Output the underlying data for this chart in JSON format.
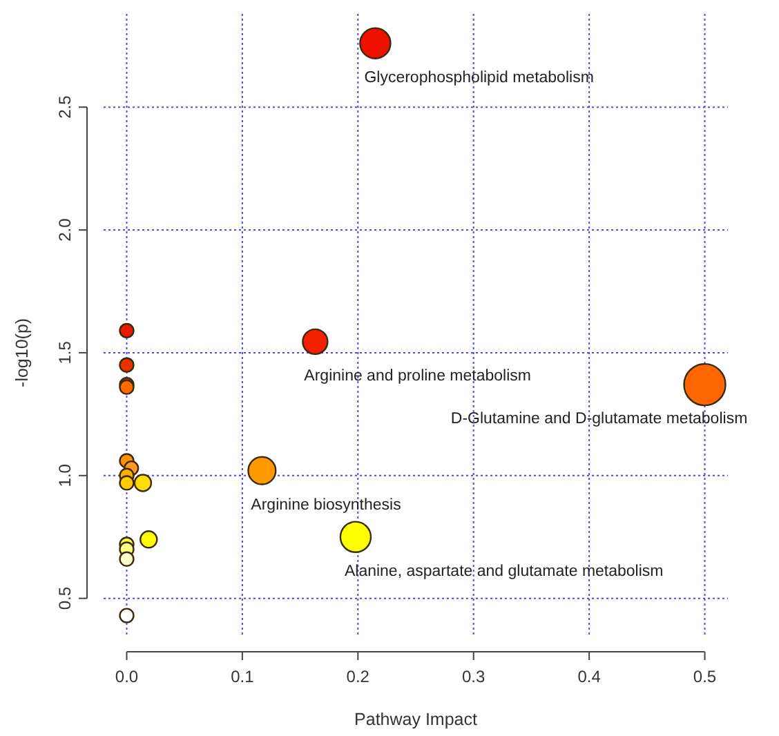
{
  "chart_data": {
    "type": "bubble",
    "xlabel": "Pathway Impact",
    "ylabel": "-log10(p)",
    "xlim": [
      -0.02,
      0.52
    ],
    "ylim": [
      0.35,
      2.88
    ],
    "xticks": [
      {
        "value": 0,
        "label": "0.0"
      },
      0.1,
      0.2,
      0.3,
      0.4,
      0.5
    ],
    "yticks": [
      0.5,
      {
        "value": 1,
        "label": "1.0"
      },
      1.5,
      {
        "value": 2,
        "label": "2.0"
      },
      2.5
    ],
    "grid": true,
    "marker": "circle",
    "series": [
      {
        "x": [
          0.215,
          0.163,
          0.5,
          0.117,
          0.198,
          0,
          0,
          0,
          0,
          0,
          0.004,
          0,
          0,
          0.014,
          0.019,
          0,
          0,
          0,
          0
        ],
        "values": [
          2.76,
          1.545,
          1.37,
          1.02,
          0.75,
          1.59,
          1.45,
          1.37,
          1.36,
          1.06,
          1.03,
          1.0,
          0.97,
          0.97,
          0.74,
          0.72,
          0.7,
          0.66,
          0.43
        ],
        "sizes": [
          0.54,
          0.36,
          1,
          0.44,
          0.54,
          0.11,
          0.11,
          0.11,
          0.11,
          0.11,
          0.11,
          0.11,
          0.11,
          0.16,
          0.16,
          0.11,
          0.11,
          0.11,
          0.11
        ],
        "colors": [
          "#ee1100",
          "#f52000",
          "#ff6600",
          "#ff9900",
          "#ffff00",
          "#e81a00",
          "#e83000",
          "#cc4400",
          "#ff6a00",
          "#ff9000",
          "#ff9a20",
          "#ffb000",
          "#ffcc00",
          "#ffdd00",
          "#ffff00",
          "#ffff40",
          "#ffff88",
          "#ffffcc",
          "#ffffff"
        ]
      }
    ],
    "annotations": [
      {
        "text": "Glycerophospholipid metabolism",
        "x": 0.215,
        "y": 2.76
      },
      {
        "text": "Arginine and proline metabolism",
        "x": 0.163,
        "y": 1.545
      },
      {
        "text": "D-Glutamine and D-glutamate metabolism",
        "x": 0.5,
        "y": 1.37
      },
      {
        "text": "Arginine biosynthesis",
        "x": 0.117,
        "y": 1.02
      },
      {
        "text": "Alanine, aspartate and glutamate metabolism",
        "x": 0.198,
        "y": 0.75
      }
    ]
  }
}
